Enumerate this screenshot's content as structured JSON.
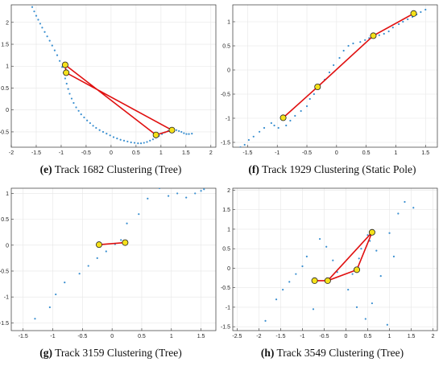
{
  "chart_data": [
    {
      "type": "scatter",
      "title": "",
      "caption_label": "(e)",
      "caption_text": "Track 1682 Clustering (Tree)",
      "xlabel": "",
      "ylabel": "",
      "xlim": [
        -2,
        2.1
      ],
      "ylim": [
        -0.85,
        2.4
      ],
      "xticks": [
        -2,
        -1.5,
        -1,
        -0.5,
        0,
        0.5,
        1,
        1.5,
        2
      ],
      "yticks": [
        -0.5,
        0,
        0.5,
        1,
        1.5,
        2
      ],
      "grid": true,
      "series": [
        {
          "role": "points",
          "color": "#3a8fd0",
          "x": [
            -1.58,
            -1.54,
            -1.5,
            -1.46,
            -1.42,
            -1.38,
            -1.33,
            -1.28,
            -1.23,
            -1.18,
            -1.13,
            -1.08,
            -1.03,
            -0.98,
            -0.95,
            -0.92,
            -0.89,
            -0.86,
            -0.83,
            -0.79,
            -0.75,
            -0.7,
            -0.65,
            -0.6,
            -0.54,
            -0.48,
            -0.42,
            -0.36,
            -0.3,
            -0.23,
            -0.16,
            -0.09,
            -0.02,
            0.05,
            0.12,
            0.19,
            0.26,
            0.33,
            0.4,
            0.47,
            0.54,
            0.6,
            0.66,
            0.72,
            0.78,
            0.84,
            0.9,
            0.96,
            1.02,
            1.08,
            1.14,
            1.2,
            1.26,
            1.31,
            1.36,
            1.41,
            1.46,
            1.51,
            1.56,
            1.62
          ],
          "y": [
            2.35,
            2.25,
            2.15,
            2.06,
            1.97,
            1.88,
            1.78,
            1.68,
            1.58,
            1.47,
            1.36,
            1.25,
            1.12,
            0.98,
            0.85,
            0.72,
            0.6,
            0.48,
            0.37,
            0.26,
            0.16,
            0.06,
            -0.02,
            -0.1,
            -0.17,
            -0.24,
            -0.3,
            -0.36,
            -0.41,
            -0.46,
            -0.5,
            -0.54,
            -0.58,
            -0.62,
            -0.65,
            -0.68,
            -0.7,
            -0.72,
            -0.74,
            -0.75,
            -0.76,
            -0.76,
            -0.75,
            -0.73,
            -0.7,
            -0.67,
            -0.63,
            -0.59,
            -0.55,
            -0.51,
            -0.48,
            -0.46,
            -0.45,
            -0.46,
            -0.48,
            -0.5,
            -0.53,
            -0.55,
            -0.55,
            -0.54
          ]
        },
        {
          "role": "cluster_path",
          "color": "#e01010",
          "x": [
            -0.92,
            -0.9,
            1.22,
            0.9,
            -0.92
          ],
          "y": [
            1.03,
            0.85,
            -0.46,
            -0.57,
            1.03
          ]
        }
      ]
    },
    {
      "type": "scatter",
      "title": "",
      "caption_label": "(f)",
      "caption_text": "Track 1929 Clustering (Static Pole)",
      "xlabel": "",
      "ylabel": "",
      "xlim": [
        -1.75,
        1.7
      ],
      "ylim": [
        -1.6,
        1.35
      ],
      "xticks": [
        -1.5,
        -1,
        -0.5,
        0,
        0.5,
        1,
        1.5
      ],
      "yticks": [
        -1.5,
        -1,
        -0.5,
        0,
        0.5,
        1
      ],
      "grid": true,
      "series": [
        {
          "role": "points",
          "color": "#3a8fd0",
          "x": [
            -1.62,
            -1.55,
            -1.48,
            -1.4,
            -1.3,
            -1.22,
            -1.1,
            -1.05,
            -0.98,
            -0.85,
            -0.78,
            -0.7,
            -0.6,
            -0.5,
            -0.45,
            -0.38,
            -0.3,
            -0.2,
            -0.12,
            -0.05,
            0.05,
            0.12,
            0.2,
            0.28,
            0.4,
            0.48,
            0.55,
            0.65,
            0.72,
            0.8,
            0.88,
            0.95,
            1.05,
            1.12,
            1.2,
            1.28,
            1.35,
            1.42,
            1.5
          ],
          "y": [
            -1.6,
            -1.55,
            -1.45,
            -1.38,
            -1.28,
            -1.2,
            -1.1,
            -1.15,
            -1.2,
            -1.15,
            -1.05,
            -0.95,
            -0.85,
            -0.75,
            -0.6,
            -0.5,
            -0.35,
            -0.2,
            -0.05,
            0.1,
            0.25,
            0.4,
            0.5,
            0.55,
            0.58,
            0.62,
            0.66,
            0.7,
            0.72,
            0.75,
            0.8,
            0.88,
            0.95,
            1.0,
            1.05,
            1.1,
            1.15,
            1.2,
            1.25
          ]
        },
        {
          "role": "cluster_path",
          "color": "#e01010",
          "x": [
            -0.9,
            -0.32,
            0.62,
            1.3
          ],
          "y": [
            -0.99,
            -0.35,
            0.71,
            1.17
          ]
        }
      ]
    },
    {
      "type": "scatter",
      "title": "",
      "caption_label": "(g)",
      "caption_text": "Track 3159 Clustering (Tree)",
      "xlabel": "",
      "ylabel": "",
      "xlim": [
        -1.7,
        1.75
      ],
      "ylim": [
        -1.65,
        1.1
      ],
      "xticks": [
        -1.5,
        -1,
        -0.5,
        0,
        0.5,
        1,
        1.5
      ],
      "yticks": [
        -1.5,
        -1,
        -0.5,
        0,
        0.5,
        1
      ],
      "grid": true,
      "series": [
        {
          "role": "points",
          "color": "#3a8fd0",
          "x": [
            -1.3,
            -1.05,
            -0.95,
            -0.8,
            -0.55,
            -0.4,
            -0.25,
            -0.1,
            0.05,
            0.15,
            0.25,
            0.45,
            0.6,
            0.8,
            0.95,
            1.1,
            1.25,
            1.4,
            1.5,
            1.55
          ],
          "y": [
            -1.42,
            -1.2,
            -0.95,
            -0.72,
            -0.55,
            -0.4,
            -0.25,
            -0.12,
            0.02,
            0.1,
            0.42,
            0.6,
            0.9,
            1.1,
            0.95,
            1.0,
            0.92,
            1.0,
            1.05,
            1.08
          ]
        },
        {
          "role": "cluster_path",
          "color": "#e01010",
          "x": [
            -0.22,
            0.22
          ],
          "y": [
            0.01,
            0.05
          ]
        }
      ]
    },
    {
      "type": "scatter",
      "title": "",
      "caption_label": "(h)",
      "caption_text": "Track 3549 Clustering (Tree)",
      "xlabel": "",
      "ylabel": "",
      "xlim": [
        -2.6,
        2.1
      ],
      "ylim": [
        -1.6,
        2.05
      ],
      "xticks": [
        -2.5,
        -2,
        -1.5,
        -1,
        -0.5,
        0,
        0.5,
        1,
        1.5,
        2
      ],
      "yticks": [
        -1.5,
        -1,
        -0.5,
        0,
        0.5,
        1,
        1.5,
        2
      ],
      "grid": true,
      "series": [
        {
          "role": "points",
          "color": "#3a8fd0",
          "x": [
            -1.85,
            -1.6,
            -1.45,
            -1.3,
            -1.15,
            -1.0,
            -0.9,
            -0.75,
            -0.6,
            -0.45,
            -0.3,
            -0.2,
            0.05,
            0.15,
            0.25,
            0.3,
            0.35,
            0.45,
            0.5,
            0.55,
            0.6,
            0.7,
            0.8,
            0.95,
            1.0,
            1.1,
            1.2,
            1.35,
            1.55
          ],
          "y": [
            -1.35,
            -0.8,
            -0.55,
            -0.35,
            -0.15,
            0.05,
            0.3,
            -1.05,
            0.75,
            0.55,
            0.2,
            -0.1,
            -0.55,
            -0.15,
            -1.0,
            0.25,
            0.5,
            -1.3,
            0.85,
            0.7,
            -0.9,
            0.45,
            -0.2,
            -1.45,
            0.9,
            0.3,
            1.4,
            1.7,
            1.55
          ]
        },
        {
          "role": "cluster_path",
          "color": "#e01010",
          "x": [
            -0.72,
            -0.42,
            0.25,
            0.6,
            -0.42
          ],
          "y": [
            -0.32,
            -0.32,
            -0.04,
            0.92,
            -0.32
          ]
        }
      ]
    }
  ]
}
